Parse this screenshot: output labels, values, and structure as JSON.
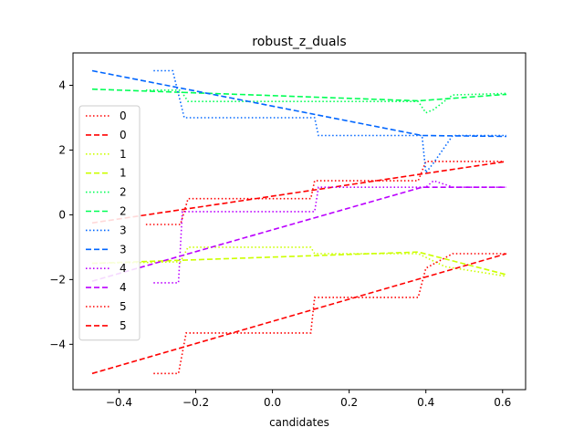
{
  "chart_data": {
    "type": "line",
    "title": "robust_z_duals",
    "xlabel": "candidates",
    "ylabel": "",
    "xlim": [
      -0.52,
      0.66
    ],
    "ylim": [
      -5.4,
      5.0
    ],
    "xticks": [
      -0.4,
      -0.2,
      0.0,
      0.2,
      0.4,
      0.6
    ],
    "xtick_labels": [
      "−0.4",
      "−0.2",
      "0.0",
      "0.2",
      "0.4",
      "0.6"
    ],
    "yticks": [
      -4,
      -2,
      0,
      2,
      4
    ],
    "ytick_labels": [
      "−4",
      "−2",
      "0",
      "2",
      "4"
    ],
    "legend_position": "center-left",
    "series": [
      {
        "name": "0",
        "style": "dotted",
        "color": "#ff0000",
        "x": [
          -0.33,
          -0.24,
          -0.22,
          0.1,
          0.11,
          0.38,
          0.4,
          0.6
        ],
        "y": [
          -0.3,
          -0.3,
          0.5,
          0.5,
          1.05,
          1.05,
          1.65,
          1.65
        ]
      },
      {
        "name": "0",
        "style": "dashed",
        "color": "#ff0000",
        "x": [
          -0.47,
          0.61
        ],
        "y": [
          -0.25,
          1.65
        ]
      },
      {
        "name": "1",
        "style": "dotted",
        "color": "#ccff00",
        "x": [
          -0.47,
          -0.24,
          -0.22,
          0.1,
          0.11,
          0.38,
          0.45,
          0.61
        ],
        "y": [
          -1.5,
          -1.45,
          -1.0,
          -1.0,
          -1.2,
          -1.2,
          -1.6,
          -1.9
        ]
      },
      {
        "name": "1",
        "style": "dashed",
        "color": "#ccff00",
        "x": [
          -0.47,
          0.38,
          0.61
        ],
        "y": [
          -1.5,
          -1.15,
          -1.85
        ]
      },
      {
        "name": "2",
        "style": "dotted",
        "color": "#00ff55",
        "x": [
          -0.33,
          -0.24,
          -0.22,
          0.38,
          0.4,
          0.42,
          0.47,
          0.61
        ],
        "y": [
          3.85,
          3.85,
          3.5,
          3.5,
          3.15,
          3.25,
          3.7,
          3.75
        ]
      },
      {
        "name": "2",
        "style": "dashed",
        "color": "#00ff55",
        "x": [
          -0.47,
          0.38,
          0.61
        ],
        "y": [
          3.88,
          3.52,
          3.72
        ]
      },
      {
        "name": "3",
        "style": "dotted",
        "color": "#0066ff",
        "x": [
          -0.31,
          -0.26,
          -0.23,
          0.11,
          0.12,
          0.39,
          0.4,
          0.42,
          0.47,
          0.61
        ],
        "y": [
          4.45,
          4.45,
          3.0,
          3.0,
          2.45,
          2.45,
          1.3,
          1.6,
          2.45,
          2.45
        ]
      },
      {
        "name": "3",
        "style": "dashed",
        "color": "#0066ff",
        "x": [
          -0.47,
          0.39,
          0.61
        ],
        "y": [
          4.45,
          2.45,
          2.42
        ]
      },
      {
        "name": "4",
        "style": "dotted",
        "color": "#bb00ff",
        "x": [
          -0.31,
          -0.245,
          -0.235,
          0.11,
          0.12,
          0.4,
          0.42,
          0.46,
          0.47,
          0.61
        ],
        "y": [
          -2.1,
          -2.1,
          0.1,
          0.1,
          0.85,
          0.85,
          1.05,
          0.9,
          0.85,
          0.85
        ]
      },
      {
        "name": "4",
        "style": "dashed",
        "color": "#bb00ff",
        "x": [
          -0.47,
          0.39,
          0.61
        ],
        "y": [
          -2.05,
          0.85,
          0.85
        ]
      },
      {
        "name": "5",
        "style": "dotted",
        "color": "#ff0000",
        "x": [
          -0.31,
          -0.245,
          -0.225,
          0.1,
          0.11,
          0.38,
          0.4,
          0.47,
          0.61
        ],
        "y": [
          -4.9,
          -4.9,
          -3.65,
          -3.65,
          -2.55,
          -2.55,
          -1.65,
          -1.2,
          -1.2
        ]
      },
      {
        "name": "5",
        "style": "dashed",
        "color": "#ff0000",
        "x": [
          -0.47,
          0.61
        ],
        "y": [
          -4.9,
          -1.2
        ]
      }
    ]
  }
}
